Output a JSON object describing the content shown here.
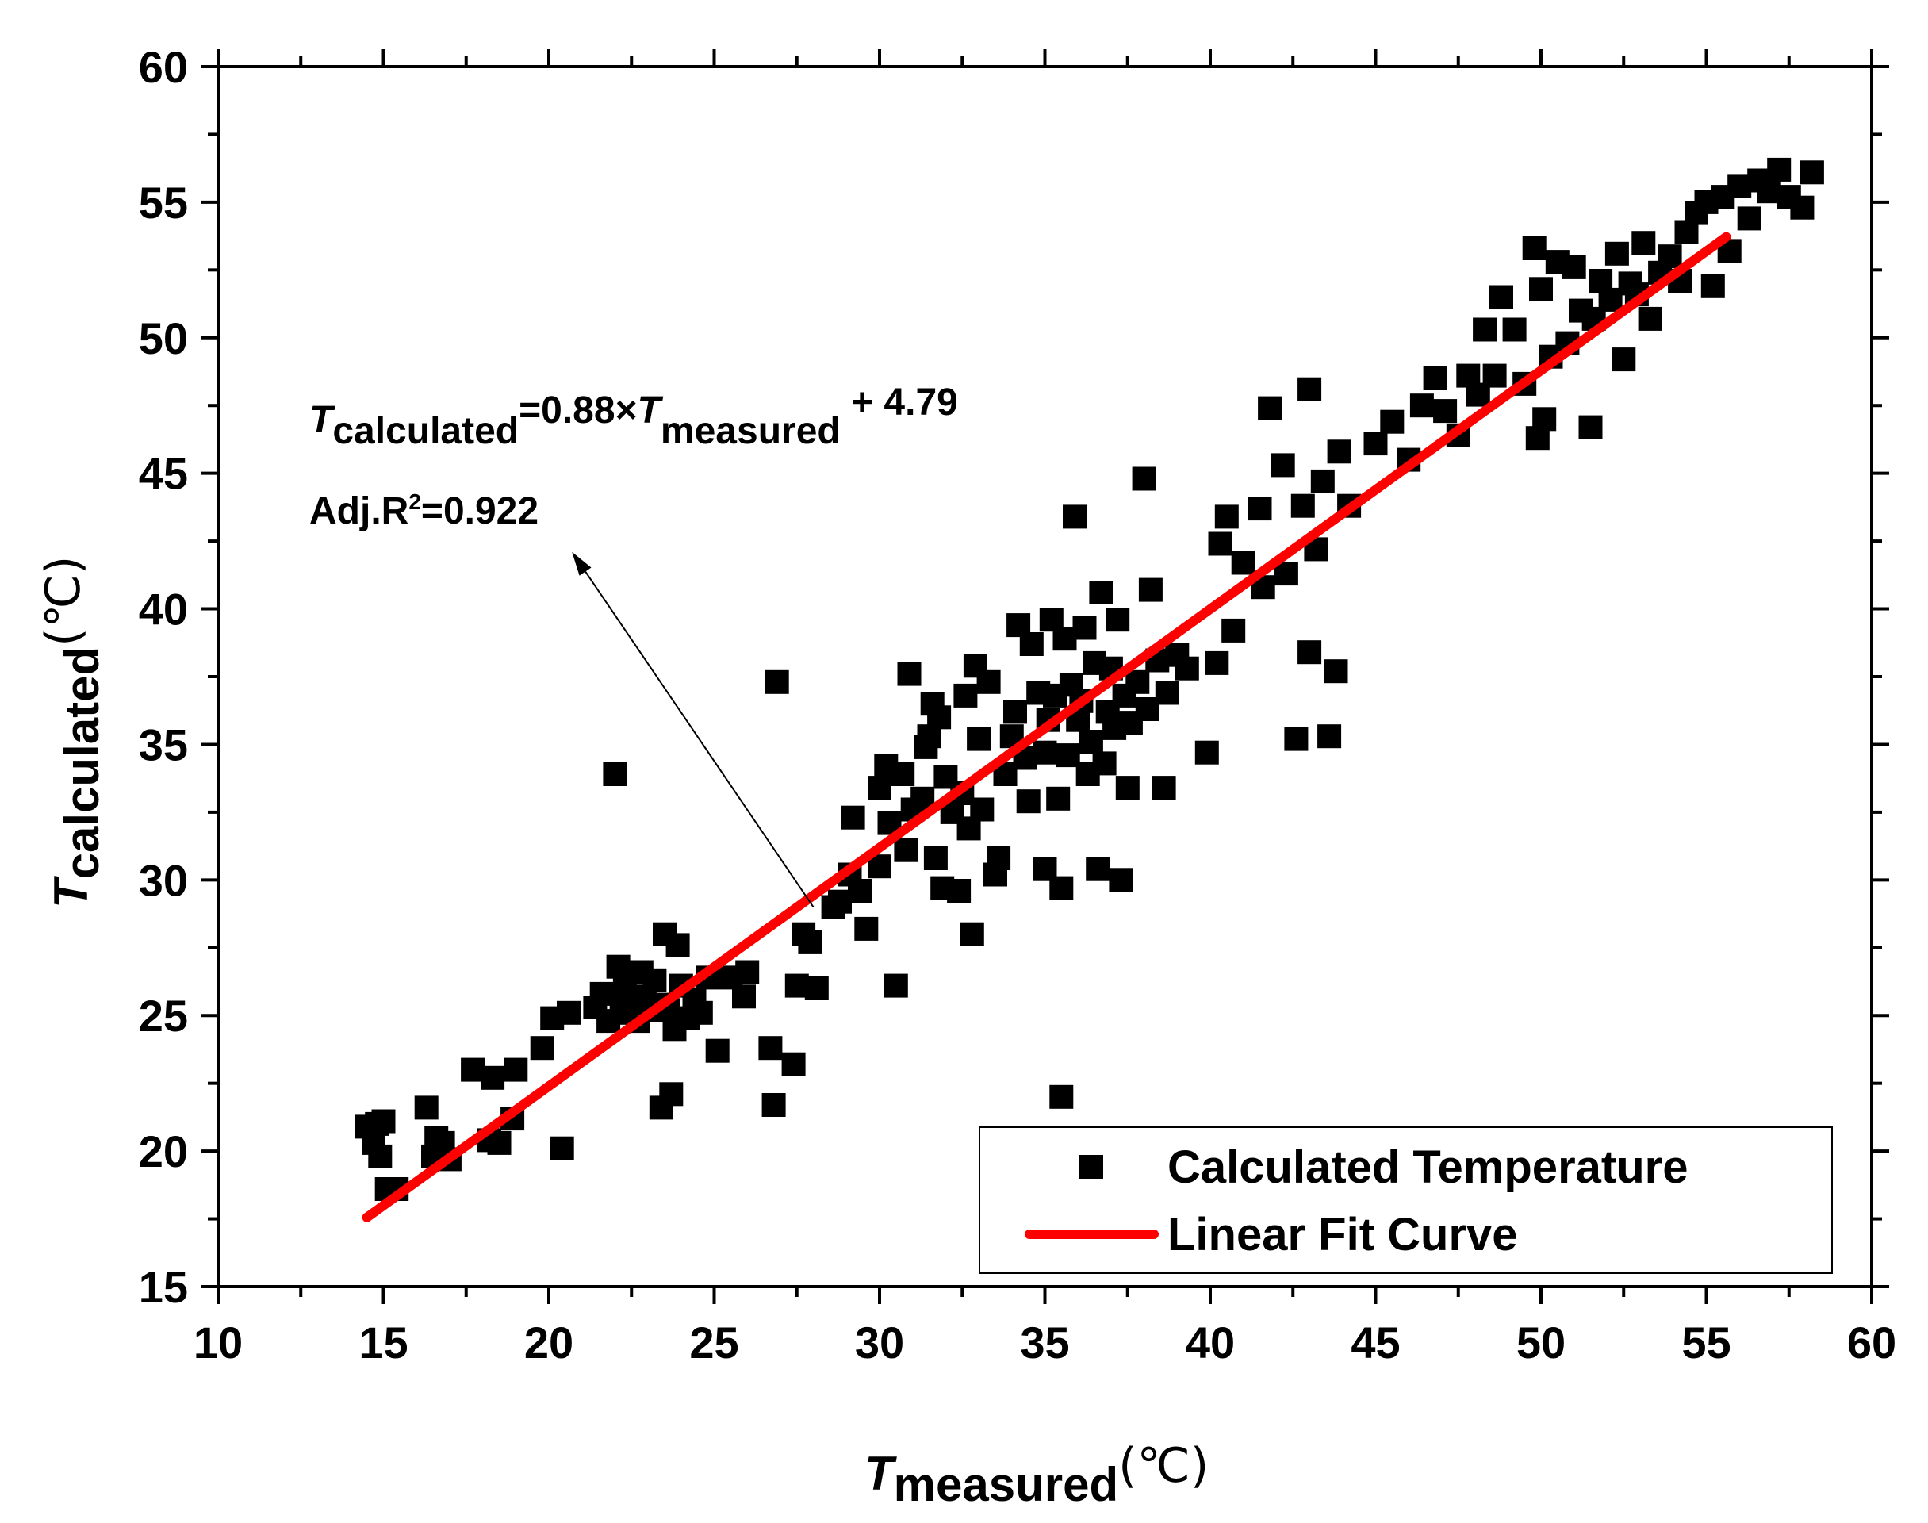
{
  "chart_data": {
    "type": "scatter",
    "title": "",
    "xlabel": {
      "main": "T",
      "sub": "measured",
      "unit": "(℃)"
    },
    "ylabel": {
      "main": "T",
      "sub": "calculated",
      "unit": "(℃)"
    },
    "xlim": [
      10,
      60
    ],
    "ylim": [
      15,
      60
    ],
    "x_ticks": [
      "10",
      "15",
      "20",
      "25",
      "30",
      "35",
      "40",
      "45",
      "50",
      "55",
      "60"
    ],
    "y_ticks": [
      "15",
      "20",
      "25",
      "30",
      "35",
      "40",
      "45",
      "50",
      "55",
      "60"
    ],
    "grid": false,
    "legend": {
      "position": "bottom-right",
      "entries": [
        "Calculated Temperature",
        "Linear Fit Curve"
      ]
    },
    "annotation": {
      "equation_lhs_main": "T",
      "equation_lhs_sub": "calculated",
      "equation_mid": "=0.88×",
      "equation_rhs_main": "T",
      "equation_rhs_sub": "measured",
      "equation_tail": " + 4.79",
      "r2_prefix": "Adj.R",
      "r2_sup": "2",
      "r2_value": "=0.922",
      "arrow_from": [
        28.0,
        29.0
      ],
      "arrow_to": [
        20.7,
        42.1
      ]
    },
    "fit": {
      "slope": 0.88,
      "intercept": 4.79,
      "x_range": [
        14.5,
        55.6
      ],
      "color": "#ff0000"
    },
    "series": [
      {
        "name": "Calculated Temperature",
        "marker": "square",
        "color": "#000000",
        "points": [
          [
            14.5,
            20.9
          ],
          [
            14.7,
            20.3
          ],
          [
            14.8,
            21.0
          ],
          [
            14.9,
            19.8
          ],
          [
            15.0,
            21.1
          ],
          [
            15.1,
            18.6
          ],
          [
            15.4,
            18.6
          ],
          [
            16.3,
            21.6
          ],
          [
            16.5,
            19.8
          ],
          [
            16.6,
            20.5
          ],
          [
            16.8,
            20.3
          ],
          [
            17.0,
            19.7
          ],
          [
            17.7,
            23.0
          ],
          [
            18.2,
            20.4
          ],
          [
            18.3,
            22.7
          ],
          [
            18.5,
            20.3
          ],
          [
            18.9,
            21.2
          ],
          [
            19.0,
            23.0
          ],
          [
            19.8,
            23.8
          ],
          [
            20.1,
            24.9
          ],
          [
            20.4,
            20.1
          ],
          [
            20.6,
            25.1
          ],
          [
            21.4,
            25.3
          ],
          [
            21.6,
            25.8
          ],
          [
            21.8,
            24.8
          ],
          [
            22.0,
            33.9
          ],
          [
            22.1,
            26.8
          ],
          [
            22.2,
            25.4
          ],
          [
            22.3,
            26.0
          ],
          [
            22.5,
            25.1
          ],
          [
            22.7,
            24.8
          ],
          [
            22.8,
            26.6
          ],
          [
            22.9,
            25.7
          ],
          [
            23.0,
            25.2
          ],
          [
            23.2,
            26.3
          ],
          [
            23.3,
            25.4
          ],
          [
            23.4,
            21.6
          ],
          [
            23.5,
            28.0
          ],
          [
            23.6,
            25.2
          ],
          [
            23.7,
            22.1
          ],
          [
            23.8,
            24.5
          ],
          [
            23.9,
            27.6
          ],
          [
            24.0,
            26.1
          ],
          [
            24.2,
            24.9
          ],
          [
            24.4,
            25.6
          ],
          [
            24.6,
            25.1
          ],
          [
            24.8,
            26.4
          ],
          [
            25.1,
            23.7
          ],
          [
            25.5,
            26.4
          ],
          [
            25.9,
            25.7
          ],
          [
            26.0,
            26.6
          ],
          [
            26.7,
            23.8
          ],
          [
            26.8,
            21.7
          ],
          [
            26.9,
            37.3
          ],
          [
            27.4,
            23.2
          ],
          [
            27.5,
            26.1
          ],
          [
            27.7,
            28.0
          ],
          [
            27.9,
            27.7
          ],
          [
            28.1,
            26.0
          ],
          [
            28.6,
            29.0
          ],
          [
            28.8,
            29.2
          ],
          [
            29.1,
            30.2
          ],
          [
            29.2,
            32.3
          ],
          [
            29.4,
            29.6
          ],
          [
            29.6,
            28.2
          ],
          [
            30.0,
            30.5
          ],
          [
            30.0,
            33.4
          ],
          [
            30.2,
            34.2
          ],
          [
            30.3,
            32.1
          ],
          [
            30.5,
            26.1
          ],
          [
            30.7,
            33.9
          ],
          [
            30.8,
            31.1
          ],
          [
            30.9,
            37.6
          ],
          [
            31.0,
            32.6
          ],
          [
            31.3,
            33.0
          ],
          [
            31.4,
            34.9
          ],
          [
            31.5,
            35.3
          ],
          [
            31.6,
            36.5
          ],
          [
            31.7,
            30.8
          ],
          [
            31.8,
            36.0
          ],
          [
            31.9,
            29.7
          ],
          [
            32.0,
            33.8
          ],
          [
            32.2,
            32.5
          ],
          [
            32.4,
            29.6
          ],
          [
            32.5,
            33.2
          ],
          [
            32.6,
            36.8
          ],
          [
            32.7,
            31.9
          ],
          [
            32.8,
            28.0
          ],
          [
            32.9,
            37.9
          ],
          [
            33.0,
            35.2
          ],
          [
            33.1,
            32.6
          ],
          [
            33.3,
            37.3
          ],
          [
            33.5,
            30.2
          ],
          [
            33.6,
            30.8
          ],
          [
            33.8,
            33.9
          ],
          [
            34.0,
            35.3
          ],
          [
            34.1,
            36.2
          ],
          [
            34.2,
            39.4
          ],
          [
            34.4,
            34.5
          ],
          [
            34.5,
            32.9
          ],
          [
            34.6,
            38.7
          ],
          [
            34.8,
            36.9
          ],
          [
            35.0,
            34.7
          ],
          [
            35.0,
            30.4
          ],
          [
            35.1,
            35.9
          ],
          [
            35.2,
            39.6
          ],
          [
            35.3,
            36.8
          ],
          [
            35.4,
            33.0
          ],
          [
            35.5,
            29.7
          ],
          [
            35.5,
            22.0
          ],
          [
            35.6,
            38.9
          ],
          [
            35.7,
            34.6
          ],
          [
            35.8,
            37.2
          ],
          [
            35.9,
            43.4
          ],
          [
            36.0,
            35.9
          ],
          [
            36.1,
            36.6
          ],
          [
            36.2,
            39.3
          ],
          [
            36.3,
            33.9
          ],
          [
            36.4,
            35.1
          ],
          [
            36.5,
            38.0
          ],
          [
            36.6,
            30.4
          ],
          [
            36.7,
            40.6
          ],
          [
            36.8,
            34.3
          ],
          [
            36.9,
            36.2
          ],
          [
            37.0,
            37.8
          ],
          [
            37.1,
            35.6
          ],
          [
            37.2,
            39.6
          ],
          [
            37.3,
            30.0
          ],
          [
            37.4,
            36.8
          ],
          [
            37.5,
            33.4
          ],
          [
            37.6,
            35.8
          ],
          [
            37.8,
            37.3
          ],
          [
            38.0,
            44.8
          ],
          [
            38.1,
            36.3
          ],
          [
            38.2,
            40.7
          ],
          [
            38.4,
            38.1
          ],
          [
            38.6,
            33.4
          ],
          [
            38.7,
            36.9
          ],
          [
            39.0,
            38.3
          ],
          [
            39.3,
            37.8
          ],
          [
            39.9,
            34.7
          ],
          [
            40.2,
            38.0
          ],
          [
            40.3,
            42.4
          ],
          [
            40.5,
            43.4
          ],
          [
            40.7,
            39.2
          ],
          [
            41.0,
            41.7
          ],
          [
            41.5,
            43.7
          ],
          [
            41.6,
            40.8
          ],
          [
            41.8,
            47.4
          ],
          [
            42.2,
            45.3
          ],
          [
            42.3,
            41.3
          ],
          [
            42.6,
            35.2
          ],
          [
            42.8,
            43.8
          ],
          [
            43.0,
            38.4
          ],
          [
            43.0,
            48.1
          ],
          [
            43.2,
            42.2
          ],
          [
            43.4,
            44.7
          ],
          [
            43.6,
            35.3
          ],
          [
            43.8,
            37.7
          ],
          [
            43.9,
            45.8
          ],
          [
            44.2,
            43.8
          ],
          [
            45.0,
            46.1
          ],
          [
            45.5,
            46.9
          ],
          [
            46.0,
            45.5
          ],
          [
            46.4,
            47.5
          ],
          [
            46.8,
            48.5
          ],
          [
            47.1,
            47.3
          ],
          [
            47.5,
            46.4
          ],
          [
            47.8,
            48.6
          ],
          [
            48.1,
            47.9
          ],
          [
            48.3,
            50.3
          ],
          [
            48.6,
            48.6
          ],
          [
            48.8,
            51.5
          ],
          [
            49.2,
            50.3
          ],
          [
            49.5,
            48.3
          ],
          [
            49.8,
            53.3
          ],
          [
            49.9,
            46.3
          ],
          [
            50.0,
            51.8
          ],
          [
            50.1,
            47.0
          ],
          [
            50.3,
            49.3
          ],
          [
            50.5,
            52.8
          ],
          [
            50.8,
            49.8
          ],
          [
            51.0,
            52.6
          ],
          [
            51.2,
            51.0
          ],
          [
            51.5,
            46.7
          ],
          [
            51.6,
            50.7
          ],
          [
            51.8,
            52.1
          ],
          [
            52.1,
            51.4
          ],
          [
            52.3,
            53.1
          ],
          [
            52.5,
            49.2
          ],
          [
            52.7,
            52.0
          ],
          [
            52.9,
            51.6
          ],
          [
            53.1,
            53.5
          ],
          [
            53.3,
            50.7
          ],
          [
            53.6,
            52.4
          ],
          [
            53.9,
            53.0
          ],
          [
            54.2,
            52.1
          ],
          [
            54.4,
            53.9
          ],
          [
            54.7,
            54.6
          ],
          [
            55.0,
            55.0
          ],
          [
            55.2,
            51.9
          ],
          [
            55.5,
            55.2
          ],
          [
            55.7,
            53.2
          ],
          [
            56.0,
            55.6
          ],
          [
            56.3,
            54.4
          ],
          [
            56.6,
            55.8
          ],
          [
            56.9,
            55.4
          ],
          [
            57.2,
            56.2
          ],
          [
            57.5,
            55.2
          ],
          [
            57.9,
            54.8
          ],
          [
            58.2,
            56.1
          ]
        ]
      }
    ]
  }
}
